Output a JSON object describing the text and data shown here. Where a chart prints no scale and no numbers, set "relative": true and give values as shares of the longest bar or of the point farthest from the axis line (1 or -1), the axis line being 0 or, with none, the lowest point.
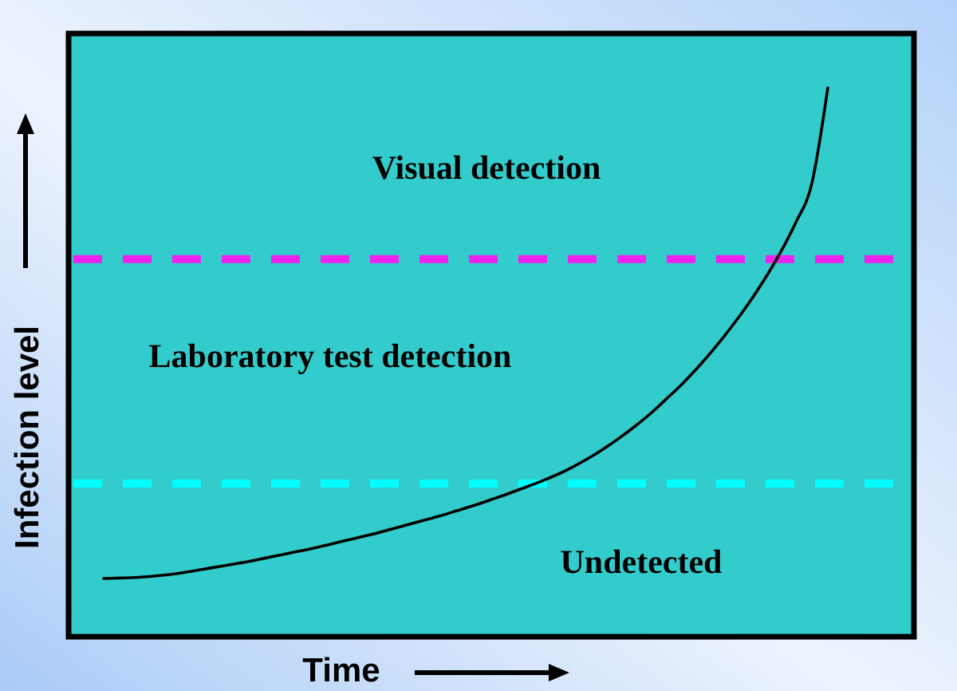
{
  "chart_data": {
    "type": "line",
    "relative": true,
    "xlabel": "Time",
    "ylabel": "Infection level",
    "categories": [
      null,
      null,
      null,
      null,
      null,
      null,
      null,
      null,
      null,
      null,
      null,
      null,
      null,
      null,
      null,
      null,
      null,
      null,
      null,
      null,
      null,
      null,
      null,
      null,
      null,
      null,
      null,
      null,
      null,
      null,
      null,
      null,
      null,
      null,
      null,
      null,
      null,
      null,
      null,
      null,
      null,
      null,
      null,
      null,
      null,
      null
    ],
    "series": [
      {
        "color": "#000000",
        "values": [
          0.106,
          0.107,
          0.108,
          0.11,
          0.113,
          0.117,
          0.122,
          0.127,
          0.132,
          0.137,
          0.143,
          0.149,
          0.155,
          0.161,
          0.168,
          0.175,
          0.182,
          0.189,
          0.197,
          0.205,
          0.213,
          0.221,
          0.23,
          0.239,
          0.249,
          0.259,
          0.27,
          0.281,
          0.293,
          0.307,
          0.323,
          0.341,
          0.361,
          0.383,
          0.407,
          0.434,
          0.462,
          0.493,
          0.527,
          0.564,
          0.604,
          0.648,
          0.697,
          0.754,
          0.825,
          1.0
        ]
      }
    ],
    "line_style": "solid",
    "ref_lines": [
      {
        "axis": "y",
        "value": 0.688,
        "color": "#ee22ee",
        "line_style": "dashed"
      },
      {
        "axis": "y",
        "value": 0.279,
        "color": "#00ffff",
        "line_style": "dashed"
      }
    ],
    "annotations": [
      "Visual detection",
      "Laboratory test detection",
      "Undetected"
    ]
  }
}
